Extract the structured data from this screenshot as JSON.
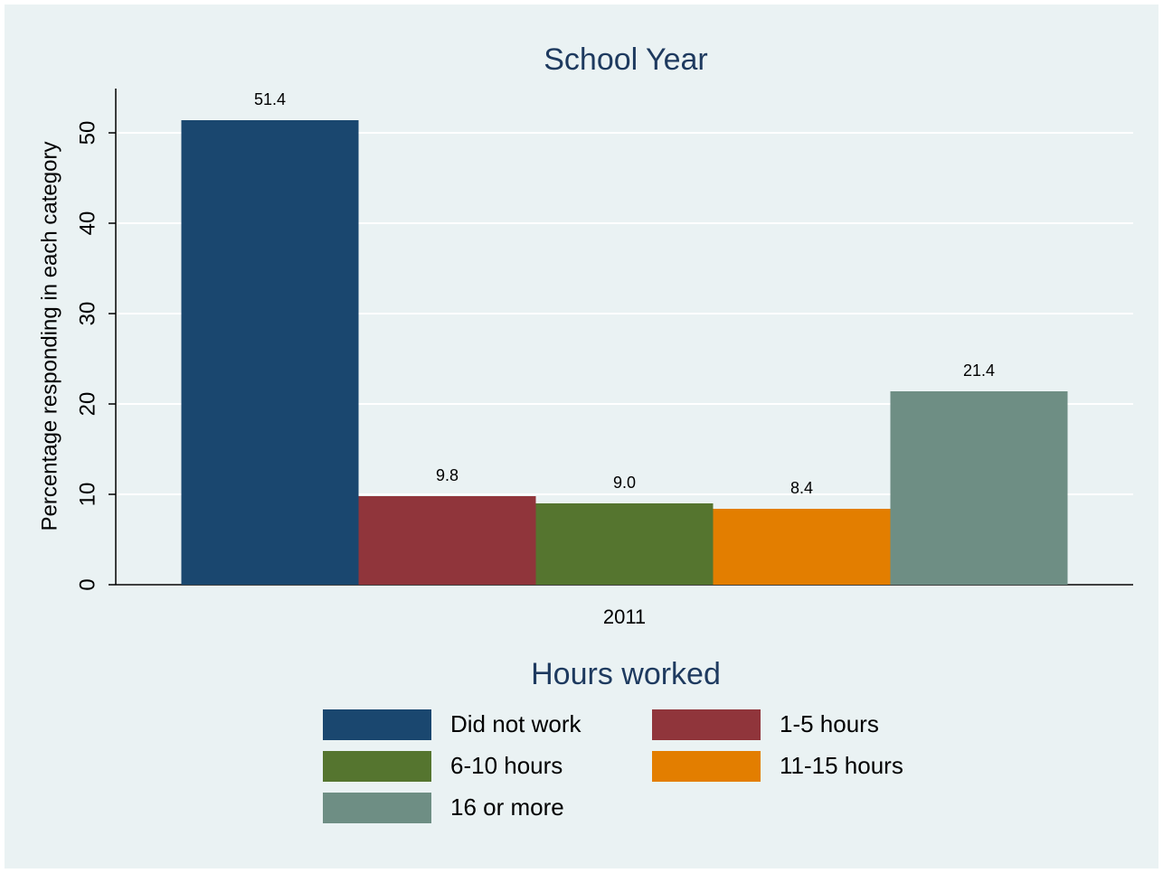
{
  "chart_data": {
    "type": "bar",
    "title": "School Year",
    "y_label": "Percentage responding in each category",
    "categories": [
      "2011"
    ],
    "series": [
      {
        "name": "Did not work",
        "color": "#1a476f",
        "values": [
          51.4
        ],
        "value_labels": [
          "51.4"
        ]
      },
      {
        "name": "1-5 hours",
        "color": "#90353b",
        "values": [
          9.8
        ],
        "value_labels": [
          "9.8"
        ]
      },
      {
        "name": "6-10 hours",
        "color": "#55752f",
        "values": [
          9.0
        ],
        "value_labels": [
          "9.0"
        ]
      },
      {
        "name": "11-15 hours",
        "color": "#e37e00",
        "values": [
          8.4
        ],
        "value_labels": [
          "8.4"
        ]
      },
      {
        "name": "16 or more",
        "color": "#6e8e84",
        "values": [
          21.4
        ],
        "value_labels": [
          "21.4"
        ]
      }
    ],
    "legend_title": "Hours worked",
    "ylim": [
      0,
      54.9
    ],
    "yticks": [
      0,
      10,
      20,
      30,
      40,
      50
    ],
    "grid": true
  }
}
